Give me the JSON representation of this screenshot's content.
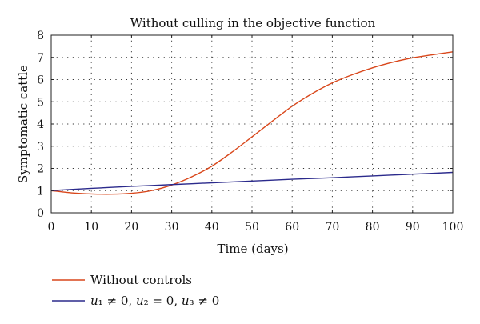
{
  "chart_data": {
    "type": "line",
    "title": "Without culling in the objective function",
    "xlabel": "Time (days)",
    "ylabel": "Symptomatic cattle",
    "xlim": [
      0,
      100
    ],
    "ylim": [
      0,
      8
    ],
    "xticks": [
      0,
      10,
      20,
      30,
      40,
      50,
      60,
      70,
      80,
      90,
      100
    ],
    "yticks": [
      0,
      1,
      2,
      3,
      4,
      5,
      6,
      7,
      8
    ],
    "grid": true,
    "legend_position": "below",
    "series": [
      {
        "name": "Without controls",
        "color": "#d9471b",
        "x": [
          0,
          5,
          10,
          15,
          20,
          25,
          30,
          35,
          40,
          45,
          50,
          55,
          60,
          65,
          70,
          75,
          80,
          85,
          90,
          95,
          100
        ],
        "y": [
          1.0,
          0.9,
          0.85,
          0.84,
          0.88,
          1.0,
          1.25,
          1.62,
          2.1,
          2.73,
          3.42,
          4.12,
          4.8,
          5.37,
          5.85,
          6.22,
          6.53,
          6.78,
          6.98,
          7.12,
          7.25
        ]
      },
      {
        "name": "u₁ ≠ 0, u₂ = 0, u₃ ≠ 0",
        "color": "#2b2a8c",
        "x": [
          0,
          10,
          20,
          30,
          40,
          50,
          60,
          70,
          80,
          90,
          100
        ],
        "y": [
          1.0,
          1.1,
          1.19,
          1.27,
          1.35,
          1.43,
          1.51,
          1.58,
          1.66,
          1.74,
          1.82
        ]
      }
    ]
  }
}
